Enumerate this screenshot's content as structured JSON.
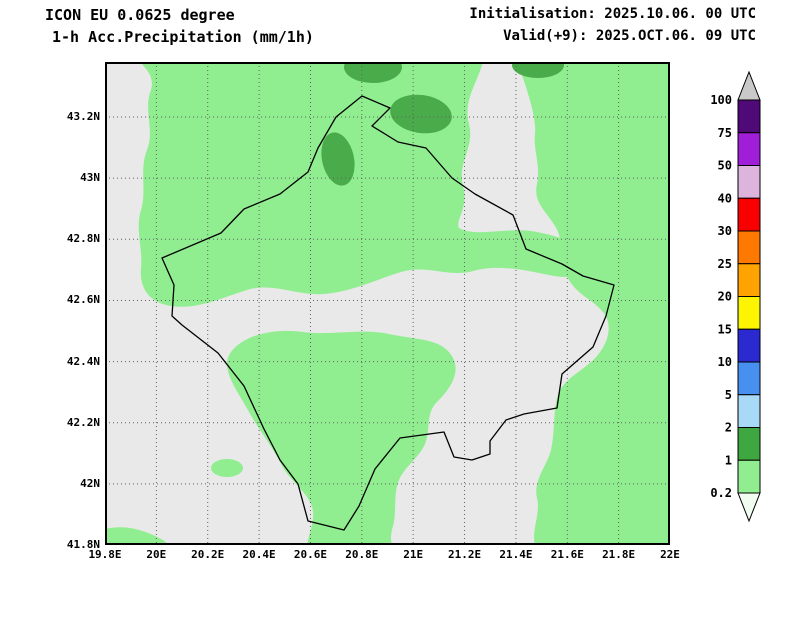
{
  "header": {
    "model": "ICON EU 0.0625 degree",
    "product": "1-h Acc.Precipitation (mm/1h)",
    "initialisation": "Initialisation: 2025.10.06. 00 UTC",
    "valid": "Valid(+9): 2025.OCT.06. 09 UTC"
  },
  "map": {
    "lon_min": 19.8,
    "lon_max": 22.0,
    "lat_min": 41.8,
    "lat_max": 43.38,
    "x_ticks": [
      {
        "label": "19.8E",
        "value": 19.8
      },
      {
        "label": "20E",
        "value": 20.0
      },
      {
        "label": "20.2E",
        "value": 20.2
      },
      {
        "label": "20.4E",
        "value": 20.4
      },
      {
        "label": "20.6E",
        "value": 20.6
      },
      {
        "label": "20.8E",
        "value": 20.8
      },
      {
        "label": "21E",
        "value": 21.0
      },
      {
        "label": "21.2E",
        "value": 21.2
      },
      {
        "label": "21.4E",
        "value": 21.4
      },
      {
        "label": "21.6E",
        "value": 21.6
      },
      {
        "label": "21.8E",
        "value": 21.8
      },
      {
        "label": "22E",
        "value": 22.0
      }
    ],
    "y_ticks": [
      {
        "label": "41.8N",
        "value": 41.8
      },
      {
        "label": "42N",
        "value": 42.0
      },
      {
        "label": "42.2N",
        "value": 42.2
      },
      {
        "label": "42.4N",
        "value": 42.4
      },
      {
        "label": "42.6N",
        "value": 42.6
      },
      {
        "label": "42.8N",
        "value": 42.8
      },
      {
        "label": "43N",
        "value": 43.0
      },
      {
        "label": "43.2N",
        "value": 43.2
      }
    ],
    "background_color": "#e9e9e9",
    "precip_light_color": "#90ee90",
    "precip_dark_color": "#4aab4a",
    "border_color": "#000000"
  },
  "legend": {
    "boundaries": [
      "100",
      "75",
      "50",
      "40",
      "30",
      "25",
      "20",
      "15",
      "10",
      "5",
      "2",
      "1",
      "0.2"
    ],
    "cell_colors": [
      "#500a78",
      "#a01ed7",
      "#dcb4dc",
      "#f80000",
      "#ff7800",
      "#ffa300",
      "#fcf400",
      "#2a2ad0",
      "#4890f0",
      "#a8daf8",
      "#3fa73f",
      "#90ee90"
    ],
    "arrow_up_color": "#c9c9c9",
    "arrow_down_color": "#f2fdf2"
  },
  "chart_data": {
    "type": "heatmap",
    "title": "1-h Acc.Precipitation (mm/1h)",
    "subtitle": "ICON EU 0.0625 degree",
    "init_time": "2025.10.06. 00 UTC",
    "valid_time": "2025.OCT.06. 09 UTC",
    "lon_range": [
      19.8,
      22.0
    ],
    "lat_range": [
      41.8,
      43.38
    ],
    "colorbar_boundaries_mm": [
      0.2,
      1,
      2,
      5,
      10,
      15,
      20,
      25,
      30,
      40,
      50,
      75,
      100
    ],
    "values_shown_on_map_mm": [
      0.2,
      1
    ]
  }
}
